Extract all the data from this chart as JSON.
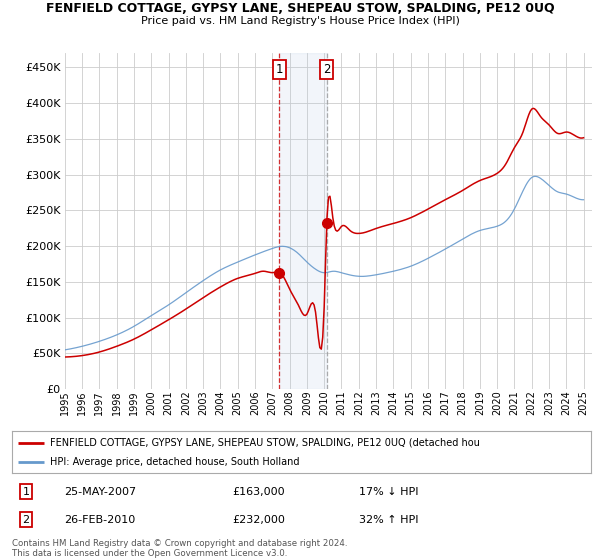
{
  "title": "FENFIELD COTTAGE, GYPSY LANE, SHEPEAU STOW, SPALDING, PE12 0UQ",
  "subtitle": "Price paid vs. HM Land Registry's House Price Index (HPI)",
  "yticks": [
    0,
    50000,
    100000,
    150000,
    200000,
    250000,
    300000,
    350000,
    400000,
    450000
  ],
  "ylim": [
    0,
    470000
  ],
  "xlim_start": 1995.0,
  "xlim_end": 2025.5,
  "xticks": [
    1995,
    1996,
    1997,
    1998,
    1999,
    2000,
    2001,
    2002,
    2003,
    2004,
    2005,
    2006,
    2007,
    2008,
    2009,
    2010,
    2011,
    2012,
    2013,
    2014,
    2015,
    2016,
    2017,
    2018,
    2019,
    2020,
    2021,
    2022,
    2023,
    2024,
    2025
  ],
  "hpi_color": "#6699cc",
  "price_color": "#cc0000",
  "marker1_x": 2007.4,
  "marker1_y": 163000,
  "marker1_label": "1",
  "marker1_date": "25-MAY-2007",
  "marker1_price": "£163,000",
  "marker1_hpi": "17% ↓ HPI",
  "marker2_x": 2010.15,
  "marker2_y": 232000,
  "marker2_label": "2",
  "marker2_date": "26-FEB-2010",
  "marker2_price": "£232,000",
  "marker2_hpi": "32% ↑ HPI",
  "shade_x1": 2007.4,
  "shade_x2": 2010.15,
  "legend_line1": "FENFIELD COTTAGE, GYPSY LANE, SHEPEAU STOW, SPALDING, PE12 0UQ (detached hou",
  "legend_line2": "HPI: Average price, detached house, South Holland",
  "footer1": "Contains HM Land Registry data © Crown copyright and database right 2024.",
  "footer2": "This data is licensed under the Open Government Licence v3.0.",
  "bg_color": "#ffffff",
  "plot_bg_color": "#ffffff",
  "grid_color": "#cccccc"
}
